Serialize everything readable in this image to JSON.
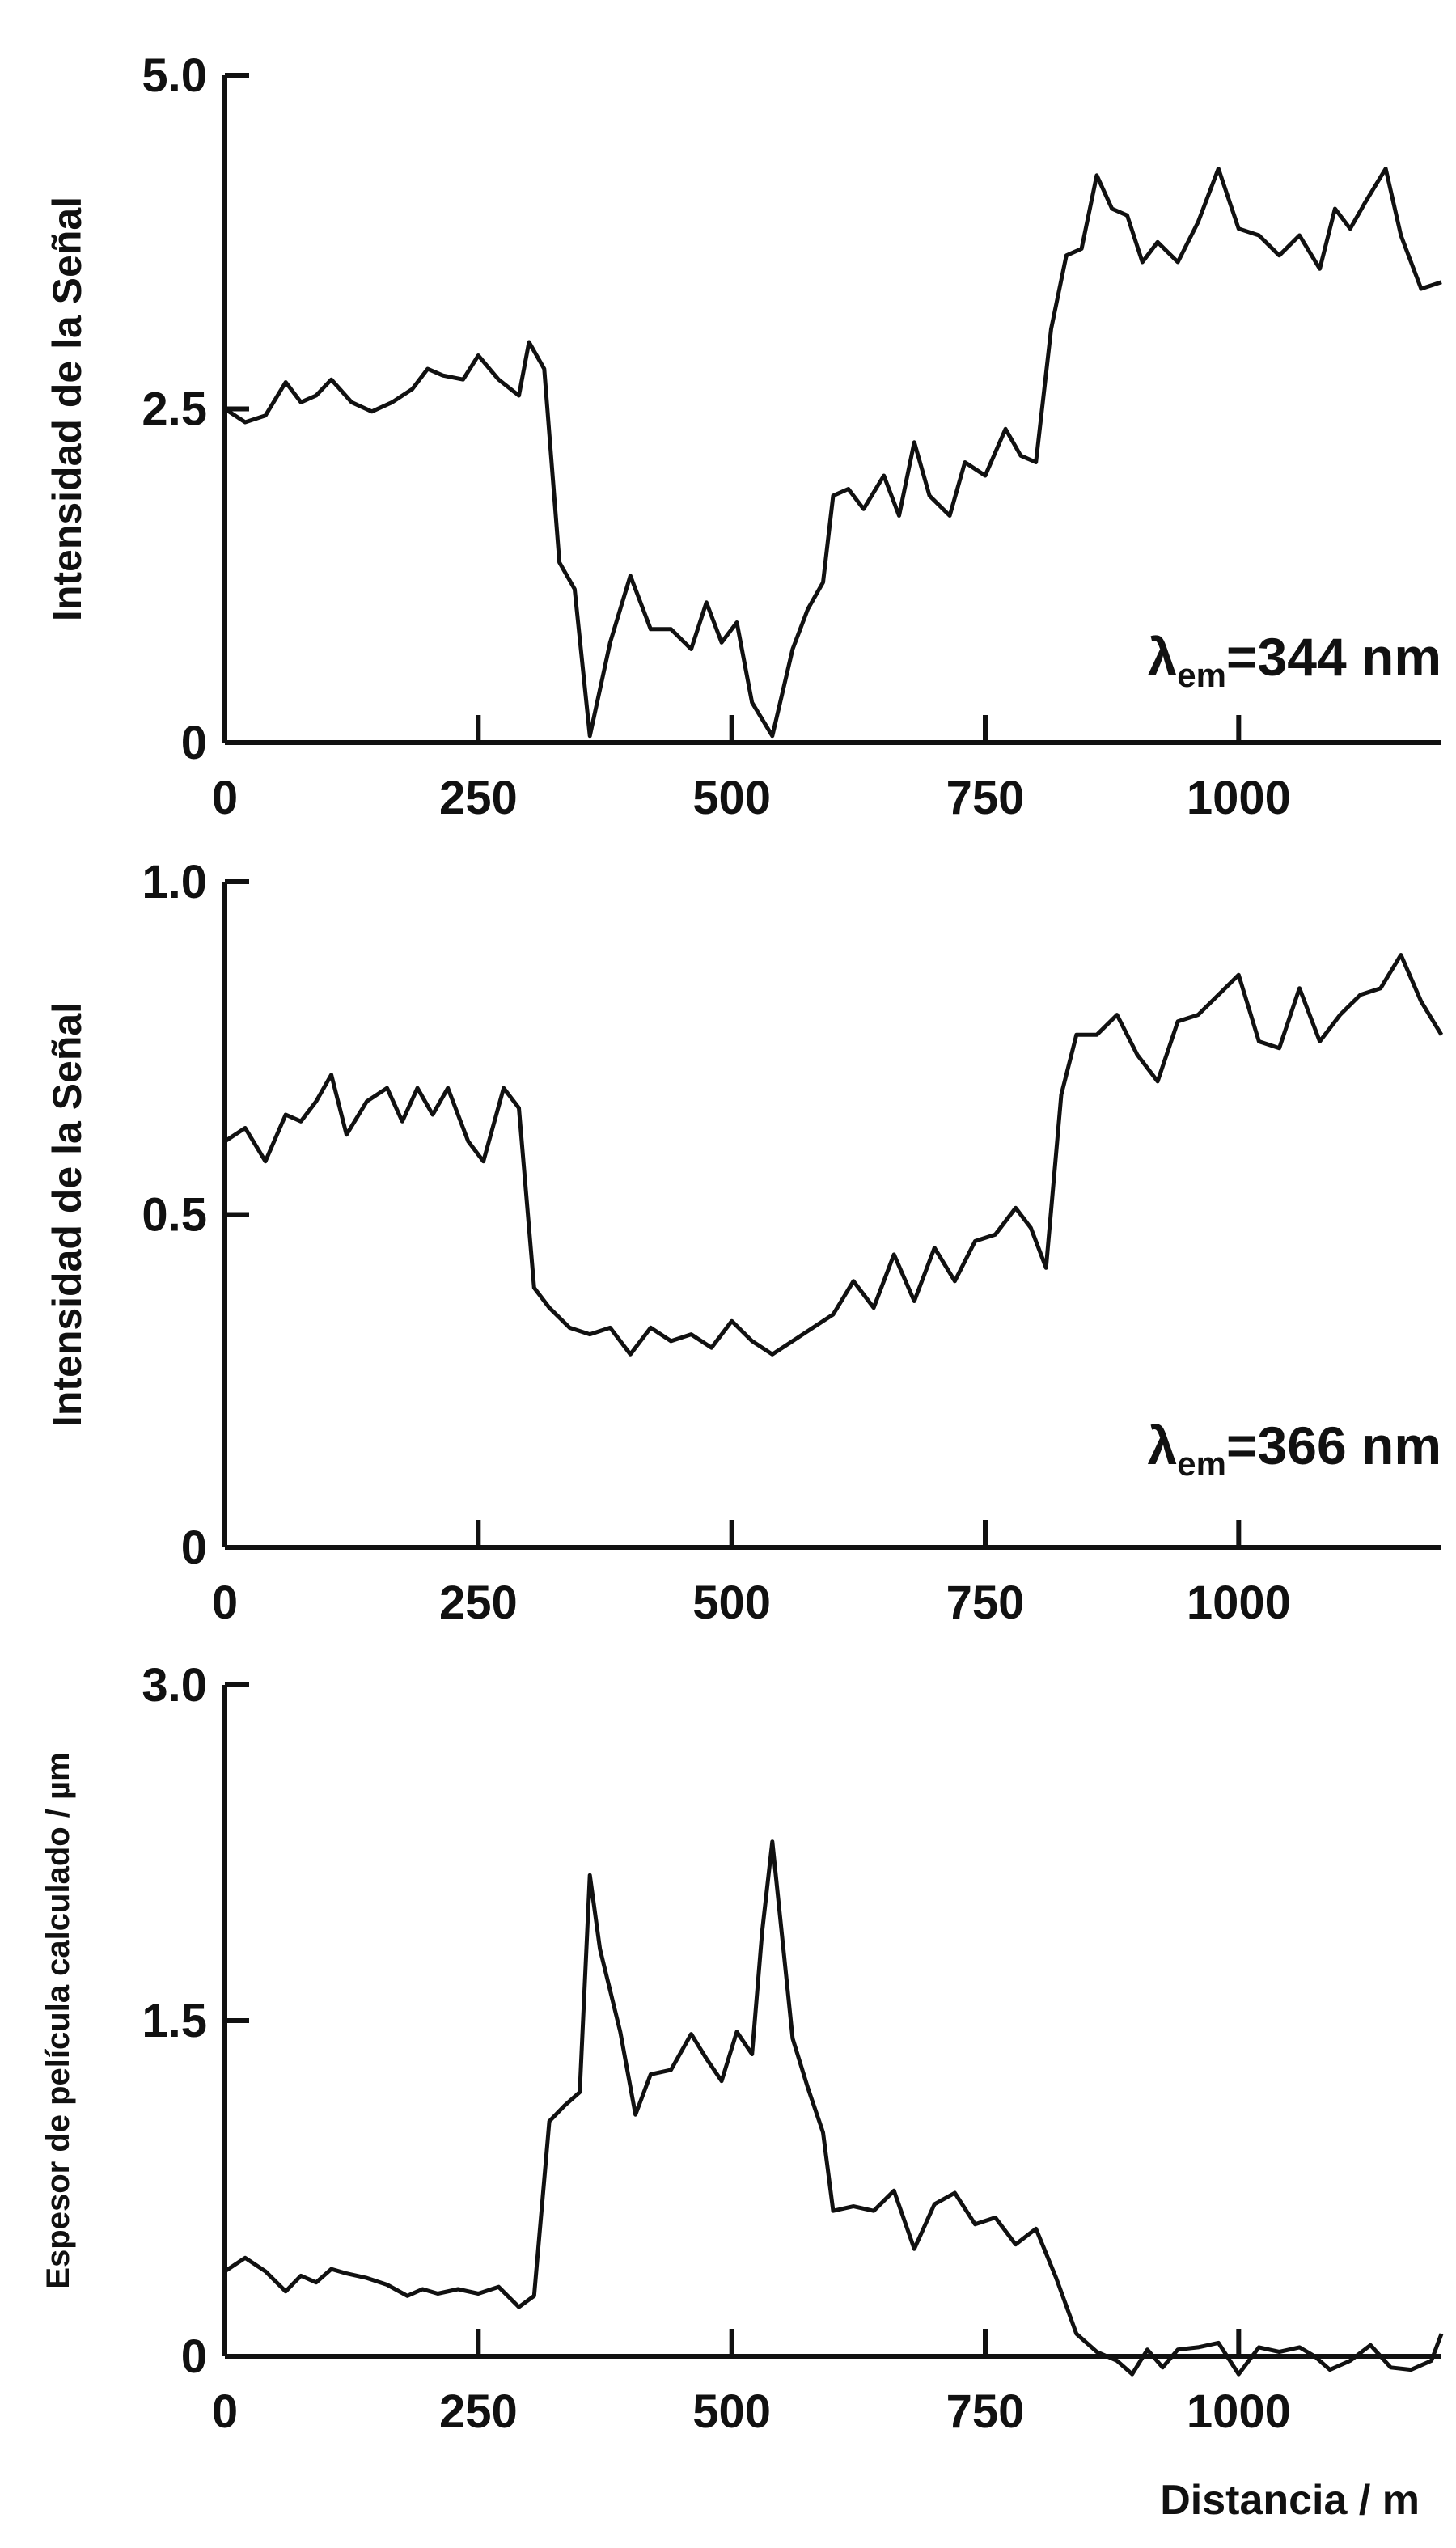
{
  "chart_data": [
    {
      "type": "line",
      "ylabel": "Intensidad de la Señal",
      "annotation": {
        "main": "λ",
        "sub": "em",
        "rest": "=344 nm"
      },
      "xlim": [
        0,
        1200
      ],
      "ylim": [
        0,
        5.0
      ],
      "xticks": [
        0,
        250,
        500,
        750,
        1000
      ],
      "yticks": [
        0,
        2.5,
        5.0
      ],
      "yticklabels": [
        "0",
        "2.5",
        "5.0"
      ],
      "series": [
        {
          "x": [
            0,
            20,
            40,
            60,
            75,
            90,
            105,
            125,
            145,
            165,
            185,
            200,
            215,
            235,
            250,
            270,
            290,
            300,
            315,
            330,
            345,
            360,
            380,
            400,
            420,
            440,
            460,
            475,
            490,
            505,
            520,
            540,
            560,
            575,
            590,
            600,
            615,
            630,
            650,
            665,
            680,
            695,
            715,
            730,
            750,
            770,
            785,
            800,
            815,
            830,
            845,
            860,
            875,
            890,
            905,
            920,
            940,
            960,
            980,
            1000,
            1020,
            1040,
            1060,
            1080,
            1095,
            1110,
            1125,
            1145,
            1160,
            1180,
            1200
          ],
          "y": [
            2.5,
            2.4,
            2.45,
            2.7,
            2.55,
            2.6,
            2.72,
            2.55,
            2.48,
            2.55,
            2.65,
            2.8,
            2.75,
            2.72,
            2.9,
            2.72,
            2.6,
            3.0,
            2.8,
            1.35,
            1.15,
            0.05,
            0.75,
            1.25,
            0.85,
            0.85,
            0.7,
            1.05,
            0.75,
            0.9,
            0.3,
            0.05,
            0.7,
            1.0,
            1.2,
            1.85,
            1.9,
            1.75,
            2.0,
            1.7,
            2.25,
            1.85,
            1.7,
            2.1,
            2.0,
            2.35,
            2.15,
            2.1,
            3.1,
            3.65,
            3.7,
            4.25,
            4.0,
            3.95,
            3.6,
            3.75,
            3.6,
            3.9,
            4.3,
            3.85,
            3.8,
            3.65,
            3.8,
            3.55,
            4.0,
            3.85,
            4.05,
            4.3,
            3.8,
            3.4,
            3.45
          ]
        }
      ]
    },
    {
      "type": "line",
      "ylabel": "Intensidad de la Señal",
      "annotation": {
        "main": "λ",
        "sub": "em",
        "rest": "=366 nm"
      },
      "xlim": [
        0,
        1200
      ],
      "ylim": [
        0,
        1.0
      ],
      "xticks": [
        0,
        250,
        500,
        750,
        1000
      ],
      "yticks": [
        0,
        0.5,
        1.0
      ],
      "yticklabels": [
        "0",
        "0.5",
        "1.0"
      ],
      "series": [
        {
          "x": [
            0,
            20,
            40,
            60,
            75,
            90,
            105,
            120,
            140,
            160,
            175,
            190,
            205,
            220,
            240,
            255,
            275,
            290,
            305,
            320,
            340,
            360,
            380,
            400,
            420,
            440,
            460,
            480,
            500,
            520,
            540,
            560,
            580,
            600,
            620,
            640,
            660,
            680,
            700,
            720,
            740,
            760,
            780,
            795,
            810,
            825,
            840,
            860,
            880,
            900,
            920,
            940,
            960,
            980,
            1000,
            1020,
            1040,
            1060,
            1080,
            1100,
            1120,
            1140,
            1160,
            1180,
            1200
          ],
          "y": [
            0.61,
            0.63,
            0.58,
            0.65,
            0.64,
            0.67,
            0.71,
            0.62,
            0.67,
            0.69,
            0.64,
            0.69,
            0.65,
            0.69,
            0.61,
            0.58,
            0.69,
            0.66,
            0.39,
            0.36,
            0.33,
            0.32,
            0.33,
            0.29,
            0.33,
            0.31,
            0.32,
            0.3,
            0.34,
            0.31,
            0.29,
            0.31,
            0.33,
            0.35,
            0.4,
            0.36,
            0.44,
            0.37,
            0.45,
            0.4,
            0.46,
            0.47,
            0.51,
            0.48,
            0.42,
            0.68,
            0.77,
            0.77,
            0.8,
            0.74,
            0.7,
            0.79,
            0.8,
            0.83,
            0.86,
            0.76,
            0.75,
            0.84,
            0.76,
            0.8,
            0.83,
            0.84,
            0.89,
            0.82,
            0.77
          ]
        }
      ]
    },
    {
      "type": "line",
      "ylabel": "Espesor de película calculado / µm",
      "xlabel": "Distancia / m",
      "xlim": [
        0,
        1200
      ],
      "ylim": [
        0,
        3.0
      ],
      "xticks": [
        0,
        250,
        500,
        750,
        1000
      ],
      "yticks": [
        0,
        1.5,
        3.0
      ],
      "yticklabels": [
        "0",
        "1.5",
        "3.0"
      ],
      "series": [
        {
          "x": [
            0,
            20,
            40,
            60,
            75,
            90,
            105,
            120,
            140,
            160,
            180,
            195,
            210,
            230,
            250,
            270,
            290,
            305,
            320,
            335,
            350,
            360,
            370,
            390,
            405,
            420,
            440,
            460,
            475,
            490,
            505,
            520,
            530,
            540,
            560,
            575,
            590,
            600,
            620,
            640,
            660,
            680,
            700,
            720,
            740,
            760,
            780,
            800,
            820,
            840,
            860,
            880,
            895,
            910,
            925,
            940,
            960,
            980,
            1000,
            1020,
            1040,
            1060,
            1075,
            1090,
            1110,
            1130,
            1150,
            1170,
            1190,
            1200
          ],
          "y": [
            0.38,
            0.44,
            0.38,
            0.29,
            0.36,
            0.33,
            0.39,
            0.37,
            0.35,
            0.32,
            0.27,
            0.3,
            0.28,
            0.3,
            0.28,
            0.31,
            0.22,
            0.27,
            1.05,
            1.12,
            1.18,
            2.15,
            1.82,
            1.45,
            1.08,
            1.26,
            1.28,
            1.44,
            1.33,
            1.23,
            1.45,
            1.35,
            1.9,
            2.3,
            1.42,
            1.2,
            1.0,
            0.65,
            0.67,
            0.65,
            0.74,
            0.48,
            0.68,
            0.73,
            0.59,
            0.62,
            0.5,
            0.57,
            0.35,
            0.1,
            0.02,
            -0.02,
            -0.08,
            0.03,
            -0.05,
            0.03,
            0.04,
            0.06,
            -0.08,
            0.04,
            0.02,
            0.04,
            0.0,
            -0.06,
            -0.02,
            0.05,
            -0.05,
            -0.06,
            -0.02,
            0.1
          ]
        }
      ]
    }
  ]
}
